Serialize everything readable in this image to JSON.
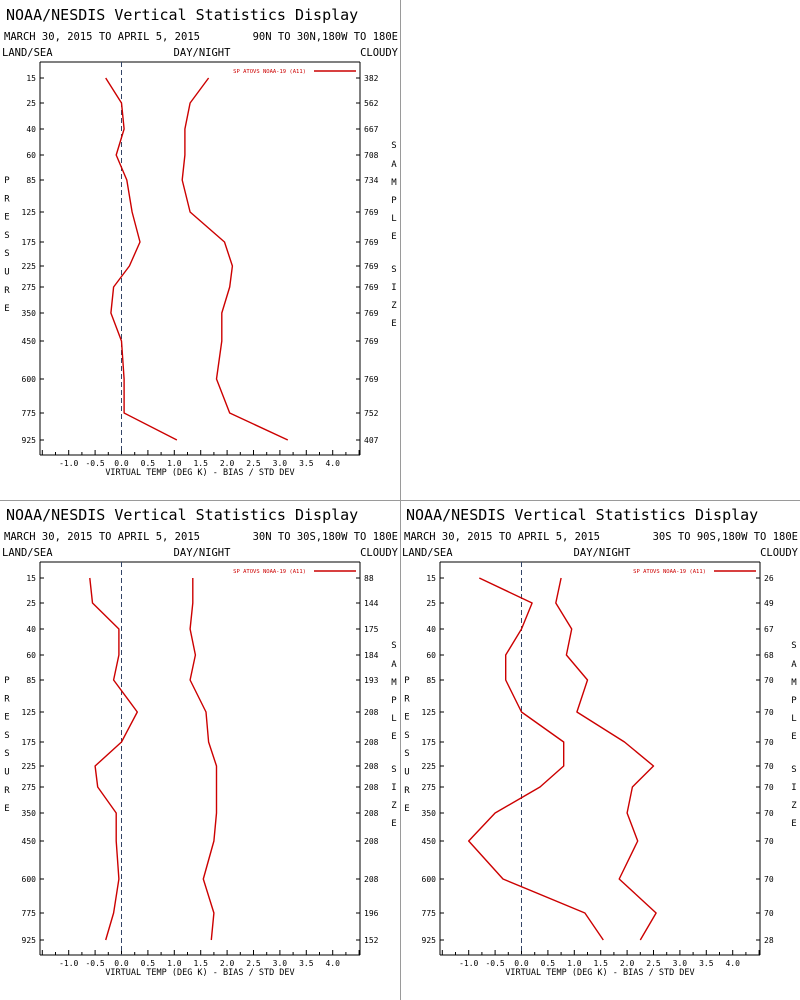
{
  "colors": {
    "series": "#cc0000",
    "axis": "#000000",
    "zero_line": "#334466",
    "separator": "#9a9a9a",
    "background": "#ffffff"
  },
  "header_labels": {
    "land_sea": "LAND/SEA",
    "day_night": "DAY/NIGHT",
    "cloudy": "CLOUDY",
    "pressure": "PRESSURE",
    "sample_size": "SAMPLE SIZE"
  },
  "chart_data": [
    {
      "type": "line",
      "title": "NOAA/NESDIS Vertical Statistics Display",
      "date_range": "MARCH 30, 2015 TO APRIL 5, 2015",
      "region": "90N TO 30N,180W TO 180E",
      "legend": "SP ATOVS NOAA-19 (A11)",
      "xlabel": "VIRTUAL TEMP (DEG K) - BIAS / STD DEV",
      "ylabel": "PRESSURE",
      "xlim": [
        -1.5,
        4.5
      ],
      "x_ticks": [
        "-1.0",
        "-0.5",
        "0.0",
        "0.5",
        "1.0",
        "1.5",
        "2.0",
        "2.5",
        "3.0",
        "3.5",
        "4.0"
      ],
      "pressure_levels": [
        "15",
        "25",
        "40",
        "60",
        "85",
        "125",
        "175",
        "225",
        "275",
        "350",
        "450",
        "600",
        "775",
        "925"
      ],
      "sample_sizes": [
        "382",
        "562",
        "667",
        "708",
        "734",
        "769",
        "769",
        "769",
        "769",
        "769",
        "769",
        "769",
        "752",
        "407"
      ],
      "series": [
        {
          "name": "Bias",
          "values": [
            -0.3,
            0.0,
            0.05,
            -0.1,
            0.1,
            0.2,
            0.35,
            0.15,
            -0.15,
            -0.2,
            0.0,
            0.05,
            0.05,
            1.05
          ]
        },
        {
          "name": "Std Dev",
          "values": [
            1.65,
            1.3,
            1.2,
            1.2,
            1.15,
            1.3,
            1.95,
            2.1,
            2.05,
            1.9,
            1.9,
            1.8,
            2.05,
            3.15
          ]
        }
      ]
    },
    {
      "type": "line",
      "title": "NOAA/NESDIS Vertical Statistics Display",
      "date_range": "MARCH 30, 2015 TO APRIL 5, 2015",
      "region": "30N TO 30S,180W TO 180E",
      "legend": "SP ATOVS NOAA-19 (A11)",
      "xlabel": "VIRTUAL TEMP (DEG K) - BIAS / STD DEV",
      "ylabel": "PRESSURE",
      "xlim": [
        -1.5,
        4.5
      ],
      "x_ticks": [
        "-1.0",
        "-0.5",
        "0.0",
        "0.5",
        "1.0",
        "1.5",
        "2.0",
        "2.5",
        "3.0",
        "3.5",
        "4.0"
      ],
      "pressure_levels": [
        "15",
        "25",
        "40",
        "60",
        "85",
        "125",
        "175",
        "225",
        "275",
        "350",
        "450",
        "600",
        "775",
        "925"
      ],
      "sample_sizes": [
        "88",
        "144",
        "175",
        "184",
        "193",
        "208",
        "208",
        "208",
        "208",
        "208",
        "208",
        "208",
        "196",
        "152"
      ],
      "series": [
        {
          "name": "Bias",
          "values": [
            -0.6,
            -0.55,
            -0.05,
            -0.05,
            -0.15,
            0.3,
            0.0,
            -0.5,
            -0.45,
            -0.1,
            -0.1,
            -0.05,
            -0.15,
            -0.3
          ]
        },
        {
          "name": "Std Dev",
          "values": [
            1.35,
            1.35,
            1.3,
            1.4,
            1.3,
            1.6,
            1.65,
            1.8,
            1.8,
            1.8,
            1.75,
            1.55,
            1.75,
            1.7
          ]
        }
      ]
    },
    {
      "type": "line",
      "title": "NOAA/NESDIS Vertical Statistics Display",
      "date_range": "MARCH 30, 2015 TO APRIL 5, 2015",
      "region": "30S TO 90S,180W TO 180E",
      "legend": "SP ATOVS NOAA-19 (A11)",
      "xlabel": "VIRTUAL TEMP (DEG K) - BIAS / STD DEV",
      "ylabel": "PRESSURE",
      "xlim": [
        -1.5,
        4.5
      ],
      "x_ticks": [
        "-1.0",
        "-0.5",
        "0.0",
        "0.5",
        "1.0",
        "1.5",
        "2.0",
        "2.5",
        "3.0",
        "3.5",
        "4.0"
      ],
      "pressure_levels": [
        "15",
        "25",
        "40",
        "60",
        "85",
        "125",
        "175",
        "225",
        "275",
        "350",
        "450",
        "600",
        "775",
        "925"
      ],
      "sample_sizes": [
        "26",
        "49",
        "67",
        "68",
        "70",
        "70",
        "70",
        "70",
        "70",
        "70",
        "70",
        "70",
        "70",
        "28"
      ],
      "series": [
        {
          "name": "Bias",
          "values": [
            -0.8,
            0.2,
            0.0,
            -0.3,
            -0.3,
            0.0,
            0.8,
            0.8,
            0.35,
            -0.5,
            -1.0,
            -0.35,
            1.2,
            1.55
          ]
        },
        {
          "name": "Std Dev",
          "values": [
            0.75,
            0.65,
            0.95,
            0.85,
            1.25,
            1.05,
            1.95,
            2.5,
            2.1,
            2.0,
            2.2,
            1.85,
            2.55,
            2.25
          ]
        }
      ]
    }
  ]
}
